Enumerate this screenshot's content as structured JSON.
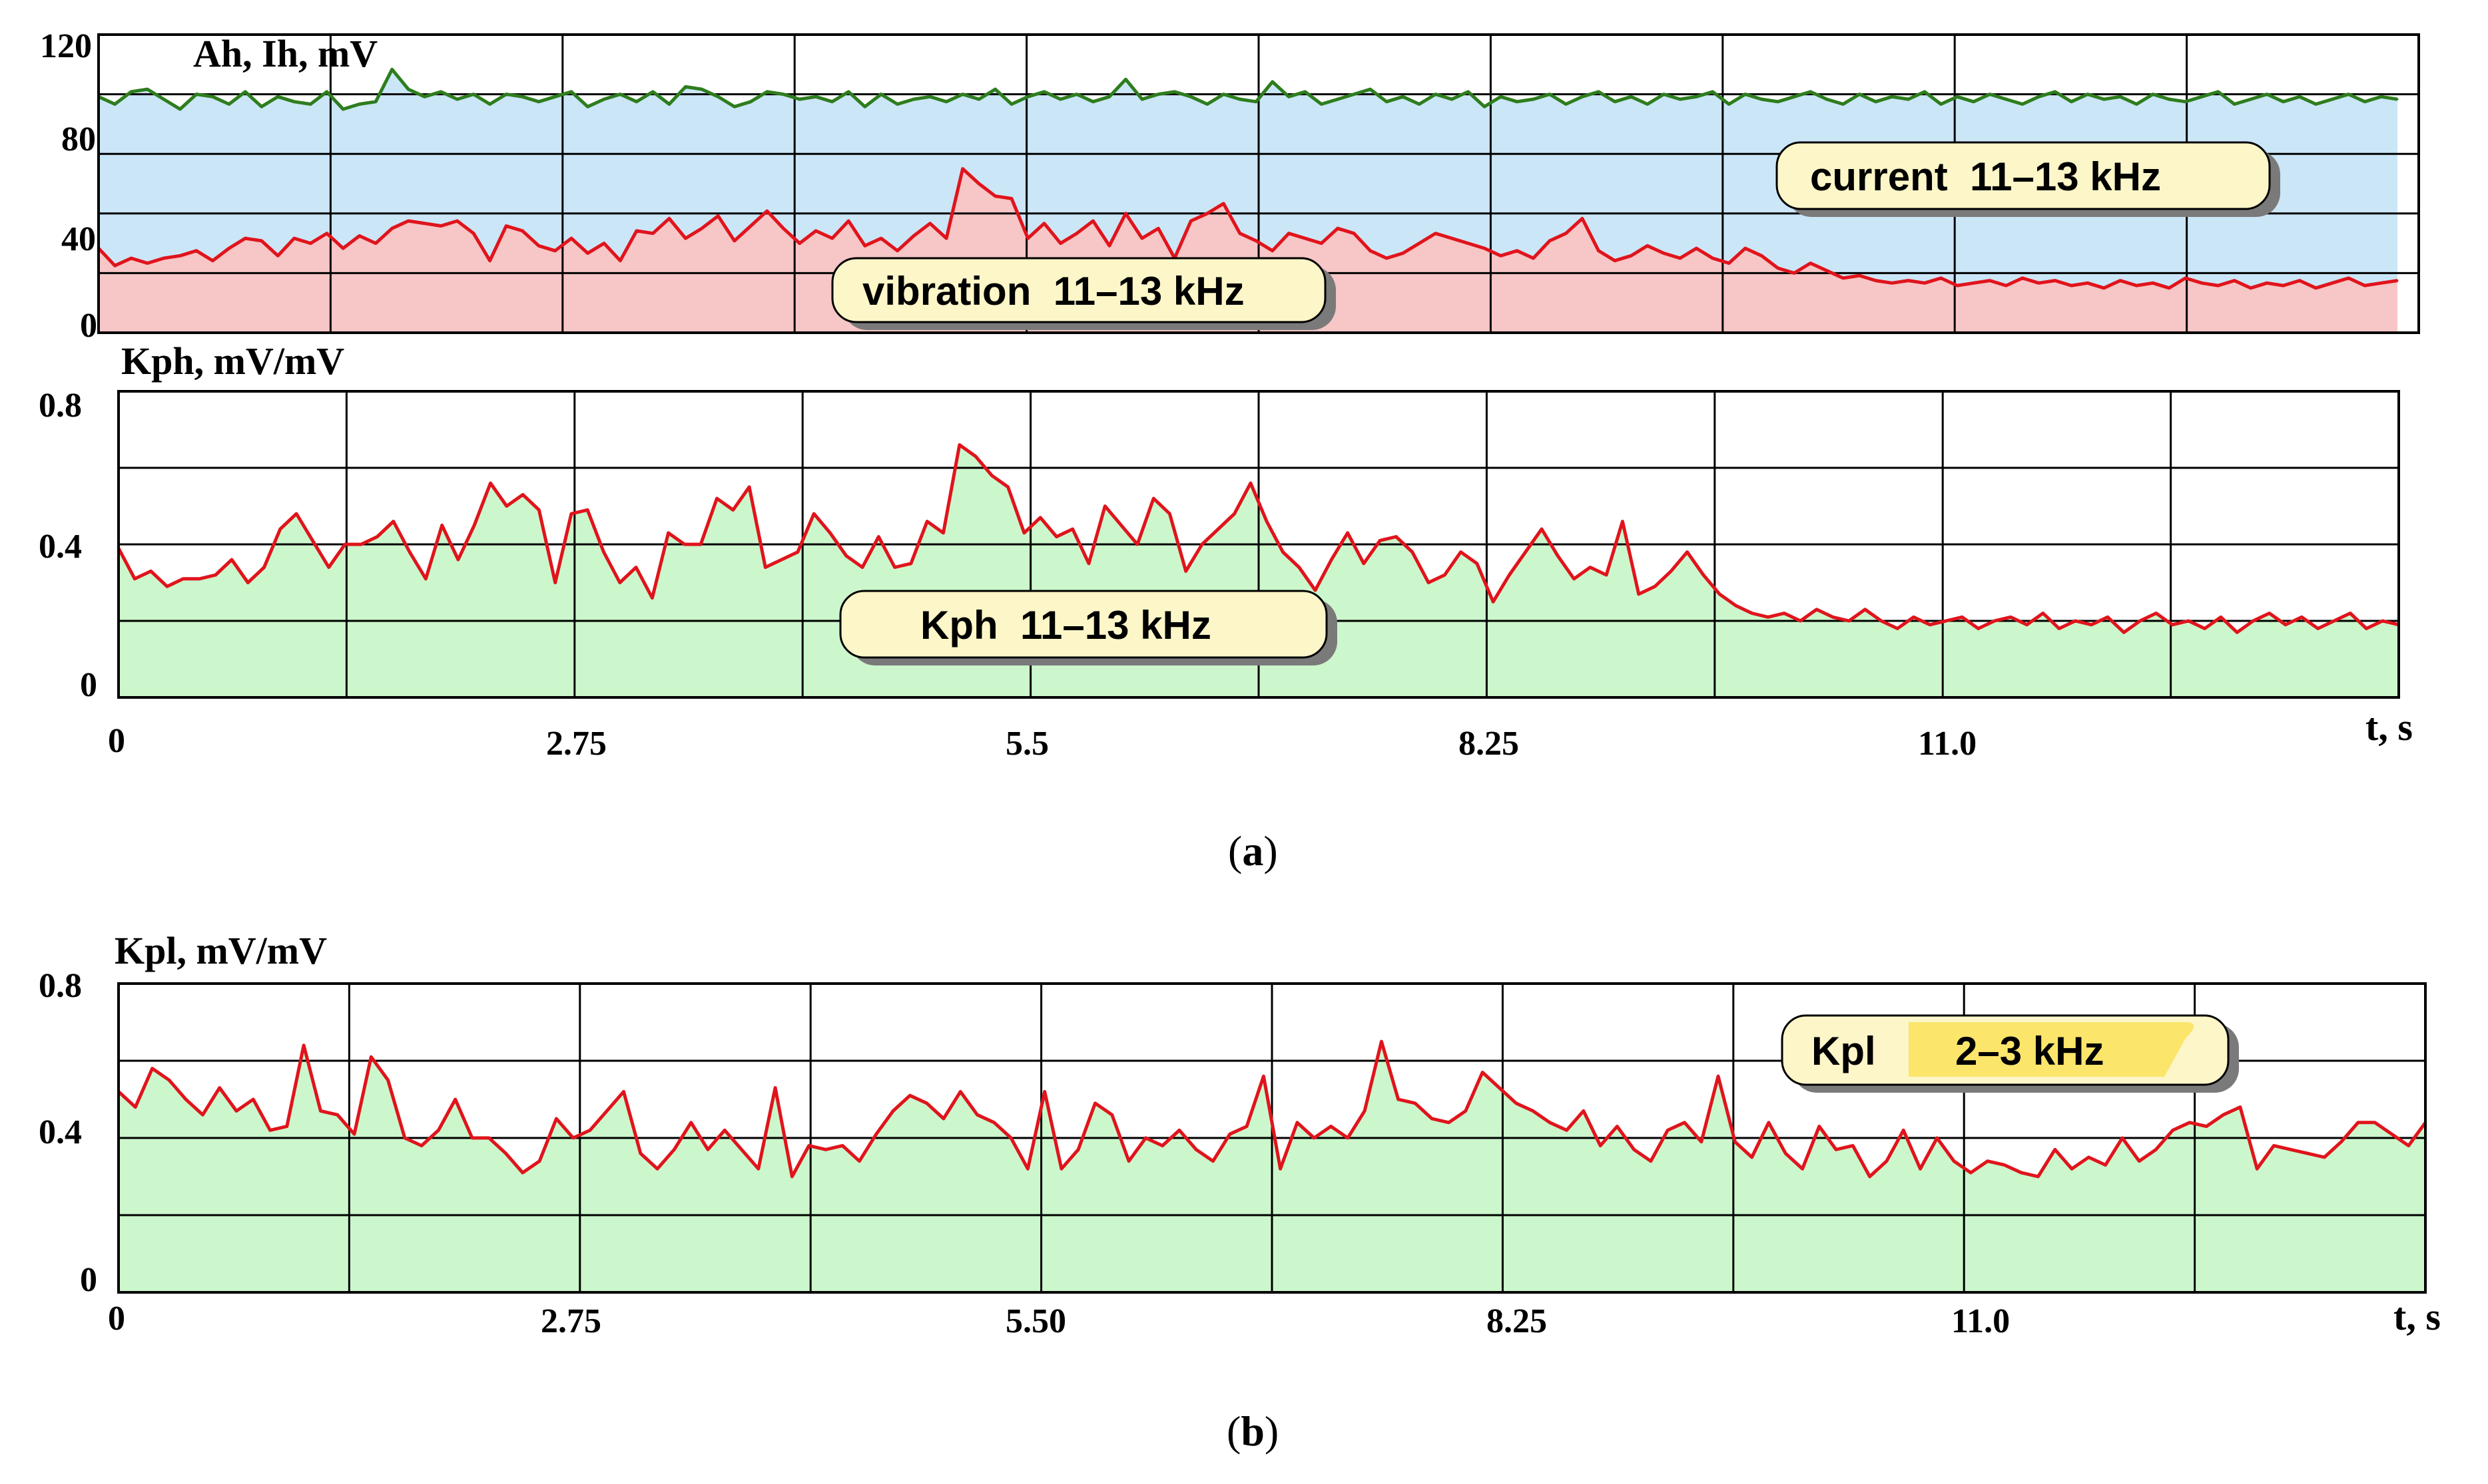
{
  "charts": [
    {
      "id": "a-top",
      "type": "area-line",
      "ylabel": "Ah, Ih, mV",
      "ylim": [
        0,
        120
      ],
      "yticks": [
        "0",
        "40",
        "80",
        "120"
      ],
      "series": [
        {
          "name": "current",
          "label_box": "current  11–13 kHz",
          "color": "#2e7d1e",
          "fill": "#cbe6f7",
          "values": [
            95,
            92,
            97,
            98,
            94,
            90,
            96,
            95,
            92,
            97,
            91,
            95,
            93,
            92,
            97,
            90,
            92,
            93,
            106,
            98,
            95,
            97,
            94,
            96,
            92,
            96,
            95,
            93,
            95,
            97,
            91,
            94,
            96,
            93,
            97,
            92,
            99,
            98,
            95,
            91,
            93,
            97,
            96,
            94,
            95,
            93,
            97,
            91,
            96,
            92,
            94,
            95,
            93,
            96,
            94,
            98,
            92,
            95,
            97,
            94,
            96,
            93,
            95,
            102,
            94,
            96,
            97,
            95,
            92,
            96,
            94,
            93,
            101,
            95,
            97,
            92,
            94,
            96,
            98,
            93,
            95,
            92,
            96,
            94,
            97,
            91,
            95,
            93,
            94,
            96,
            92,
            95,
            97,
            93,
            95,
            92,
            96,
            94,
            95,
            97,
            92,
            96,
            94,
            93,
            95,
            97,
            94,
            92,
            96,
            93,
            95,
            94,
            97,
            92,
            95,
            93,
            96,
            94,
            92,
            95,
            97,
            93,
            96,
            94,
            95,
            92,
            96,
            94,
            93,
            95,
            97,
            92,
            94,
            96,
            93,
            95,
            92,
            94,
            96,
            93,
            95,
            94
          ]
        },
        {
          "name": "vibration",
          "label_box": "vibration  11–13 kHz",
          "color": "#e0141c",
          "fill": "#f7c6c6",
          "values": [
            34,
            27,
            30,
            28,
            30,
            31,
            33,
            29,
            34,
            38,
            37,
            31,
            38,
            36,
            40,
            34,
            39,
            36,
            42,
            45,
            44,
            43,
            45,
            40,
            29,
            43,
            41,
            35,
            33,
            38,
            32,
            36,
            29,
            41,
            40,
            46,
            38,
            42,
            47,
            37,
            43,
            49,
            42,
            36,
            41,
            38,
            45,
            35,
            38,
            33,
            39,
            44,
            38,
            66,
            60,
            55,
            54,
            38,
            44,
            36,
            40,
            45,
            35,
            48,
            38,
            42,
            30,
            45,
            48,
            52,
            40,
            37,
            33,
            40,
            38,
            36,
            42,
            40,
            33,
            30,
            32,
            36,
            40,
            38,
            36,
            34,
            31,
            33,
            30,
            37,
            40,
            46,
            33,
            29,
            31,
            35,
            32,
            30,
            34,
            30,
            28,
            34,
            31,
            26,
            24,
            28,
            25,
            22,
            23,
            21,
            20,
            21,
            20,
            22,
            19,
            20,
            21,
            19,
            22,
            20,
            21,
            19,
            20,
            18,
            21,
            19,
            20,
            18,
            22,
            20,
            19,
            21,
            18,
            20,
            19,
            21,
            18,
            20,
            22,
            19,
            20,
            21
          ]
        }
      ]
    },
    {
      "id": "a-bottom",
      "type": "area-line",
      "ylabel": "Kph, mV/mV",
      "ylim": [
        0,
        0.8
      ],
      "yticks": [
        "0",
        "0.4",
        "0.8"
      ],
      "xticks": [
        "0",
        "2.75",
        "5.5",
        "8.25",
        "11.0",
        "t, s"
      ],
      "series": [
        {
          "name": "Kph",
          "label_box": "Kph  11–13 kHz",
          "color": "#e0141c",
          "fill": "#ccf7cc",
          "values": [
            0.39,
            0.31,
            0.33,
            0.29,
            0.31,
            0.31,
            0.32,
            0.36,
            0.3,
            0.34,
            0.44,
            0.48,
            0.41,
            0.34,
            0.4,
            0.4,
            0.42,
            0.46,
            0.38,
            0.31,
            0.45,
            0.36,
            0.45,
            0.56,
            0.5,
            0.53,
            0.49,
            0.3,
            0.48,
            0.49,
            0.38,
            0.3,
            0.34,
            0.26,
            0.43,
            0.4,
            0.4,
            0.52,
            0.49,
            0.55,
            0.34,
            0.36,
            0.38,
            0.48,
            0.43,
            0.37,
            0.34,
            0.42,
            0.34,
            0.35,
            0.46,
            0.43,
            0.66,
            0.63,
            0.58,
            0.55,
            0.43,
            0.47,
            0.42,
            0.44,
            0.35,
            0.5,
            0.45,
            0.4,
            0.52,
            0.48,
            0.33,
            0.4,
            0.44,
            0.48,
            0.56,
            0.46,
            0.38,
            0.34,
            0.28,
            0.36,
            0.43,
            0.35,
            0.41,
            0.42,
            0.38,
            0.3,
            0.32,
            0.38,
            0.35,
            0.25,
            0.32,
            0.38,
            0.44,
            0.37,
            0.31,
            0.34,
            0.32,
            0.46,
            0.27,
            0.29,
            0.33,
            0.38,
            0.32,
            0.27,
            0.24,
            0.22,
            0.21,
            0.22,
            0.2,
            0.23,
            0.21,
            0.2,
            0.23,
            0.2,
            0.18,
            0.21,
            0.19,
            0.2,
            0.21,
            0.18,
            0.2,
            0.21,
            0.19,
            0.22,
            0.18,
            0.2,
            0.19,
            0.21,
            0.17,
            0.2,
            0.22,
            0.19,
            0.2,
            0.18,
            0.21,
            0.17,
            0.2,
            0.22,
            0.19,
            0.21,
            0.18,
            0.2,
            0.22,
            0.18,
            0.2,
            0.19
          ]
        }
      ]
    },
    {
      "id": "b",
      "type": "area-line",
      "ylabel": "Kpl, mV/mV",
      "ylim": [
        0,
        0.8
      ],
      "yticks": [
        "0",
        "0.4",
        "0.8"
      ],
      "xticks": [
        "0",
        "2.75",
        "5.50",
        "8.25",
        "11.0",
        "t, s"
      ],
      "series": [
        {
          "name": "Kpl",
          "label_box_left": "Kpl",
          "label_box_right": "2–3 kHz",
          "color": "#e0141c",
          "fill": "#ccf7cc",
          "values": [
            0.52,
            0.48,
            0.58,
            0.55,
            0.5,
            0.46,
            0.53,
            0.47,
            0.5,
            0.42,
            0.43,
            0.64,
            0.47,
            0.46,
            0.41,
            0.61,
            0.55,
            0.4,
            0.38,
            0.42,
            0.5,
            0.4,
            0.4,
            0.36,
            0.31,
            0.34,
            0.45,
            0.4,
            0.42,
            0.47,
            0.52,
            0.36,
            0.32,
            0.37,
            0.44,
            0.37,
            0.42,
            0.37,
            0.32,
            0.53,
            0.3,
            0.38,
            0.37,
            0.38,
            0.34,
            0.41,
            0.47,
            0.51,
            0.49,
            0.45,
            0.52,
            0.46,
            0.44,
            0.4,
            0.32,
            0.52,
            0.32,
            0.37,
            0.49,
            0.46,
            0.34,
            0.4,
            0.38,
            0.42,
            0.37,
            0.34,
            0.41,
            0.43,
            0.56,
            0.32,
            0.44,
            0.4,
            0.43,
            0.4,
            0.47,
            0.65,
            0.5,
            0.49,
            0.45,
            0.44,
            0.47,
            0.57,
            0.53,
            0.49,
            0.47,
            0.44,
            0.42,
            0.47,
            0.38,
            0.43,
            0.37,
            0.34,
            0.42,
            0.44,
            0.39,
            0.56,
            0.39,
            0.35,
            0.44,
            0.36,
            0.32,
            0.43,
            0.37,
            0.38,
            0.3,
            0.34,
            0.42,
            0.32,
            0.4,
            0.34,
            0.31,
            0.34,
            0.33,
            0.31,
            0.3,
            0.37,
            0.32,
            0.35,
            0.33,
            0.4,
            0.34,
            0.37,
            0.42,
            0.44,
            0.43,
            0.46,
            0.48,
            0.32,
            0.38,
            0.37,
            0.36,
            0.35,
            0.39,
            0.44,
            0.44,
            0.41,
            0.38,
            0.44
          ]
        }
      ]
    }
  ],
  "captions": {
    "a_prefix": "(",
    "a_letter": "a",
    "a_suffix": ")",
    "b_prefix": "(",
    "b_letter": "b",
    "b_suffix": ")"
  }
}
